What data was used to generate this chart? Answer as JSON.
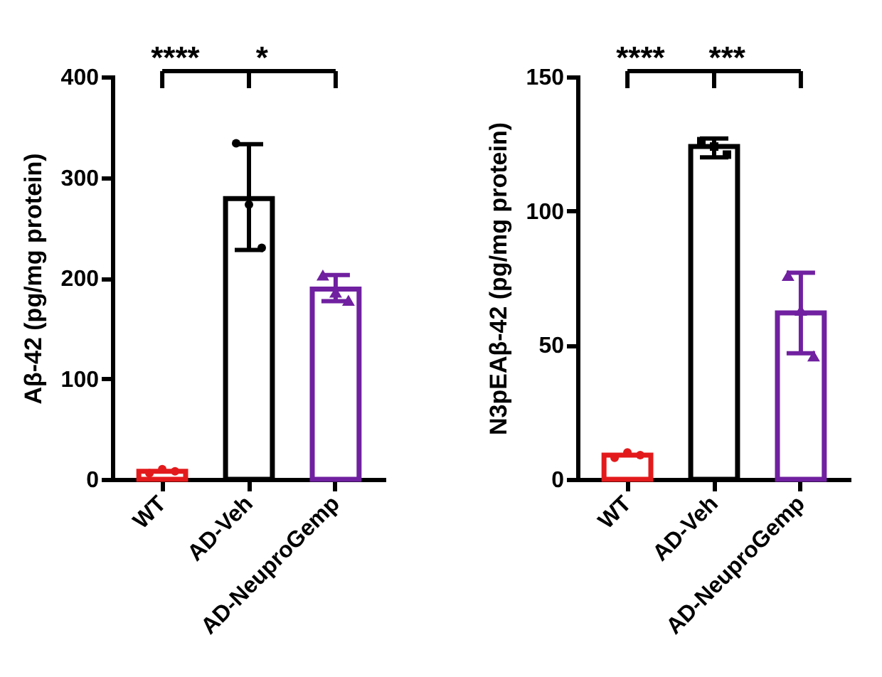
{
  "chart_data": [
    {
      "type": "bar",
      "ylabel": "Aβ-42 (pg/mg protein)",
      "categories": [
        "WT",
        "AD-Veh",
        "AD-NeuproGemp"
      ],
      "ylim": [
        0,
        400
      ],
      "yticks": [
        0,
        100,
        200,
        300,
        400
      ],
      "series": [
        {
          "type": "bar",
          "values": [
            8,
            279,
            189
          ],
          "colors": [
            "#e31a1c",
            "#000000",
            "#7020a0"
          ],
          "errors": [
            null,
            [
              228,
              333
            ],
            [
              177,
              203
            ]
          ]
        },
        {
          "type": "scatter",
          "x": [
            "WT",
            "WT",
            "WT"
          ],
          "values": [
            6,
            10,
            8
          ],
          "color": "#e31a1c",
          "marker": "circle"
        },
        {
          "type": "scatter",
          "x": [
            "AD-Veh",
            "AD-Veh",
            "AD-Veh"
          ],
          "values": [
            334,
            273,
            230
          ],
          "color": "#000000",
          "marker": "circle"
        },
        {
          "type": "scatter",
          "x": [
            "AD-NeuproGemp",
            "AD-NeuproGemp",
            "AD-NeuproGemp"
          ],
          "values": [
            203,
            186,
            178
          ],
          "color": "#7020a0",
          "marker": "triangle"
        }
      ],
      "annotations": [
        "****",
        "*"
      ]
    },
    {
      "type": "bar",
      "ylabel": "N3pEAβ-42 (pg/mg protein)",
      "categories": [
        "WT",
        "AD-Veh",
        "AD-NeuproGemp"
      ],
      "ylim": [
        0,
        150
      ],
      "yticks": [
        0,
        50,
        100,
        150
      ],
      "series": [
        {
          "type": "bar",
          "values": [
            9,
            124,
            62
          ],
          "colors": [
            "#e31a1c",
            "#000000",
            "#7020a0"
          ],
          "errors": [
            null,
            [
              120,
              127
            ],
            [
              47,
              77
            ]
          ]
        },
        {
          "type": "scatter",
          "x": [
            "WT",
            "WT",
            "WT"
          ],
          "values": [
            8,
            10,
            9
          ],
          "color": "#e31a1c",
          "marker": "circle"
        },
        {
          "type": "scatter",
          "x": [
            "AD-Veh",
            "AD-Veh",
            "AD-Veh"
          ],
          "values": [
            126,
            124,
            121
          ],
          "color": "#000000",
          "marker": "square"
        },
        {
          "type": "scatter",
          "x": [
            "AD-NeuproGemp",
            "AD-NeuproGemp",
            "AD-NeuproGemp"
          ],
          "values": [
            76,
            63,
            46
          ],
          "color": "#7020a0",
          "marker": "triangle"
        }
      ],
      "annotations": [
        "****",
        "***"
      ]
    }
  ]
}
